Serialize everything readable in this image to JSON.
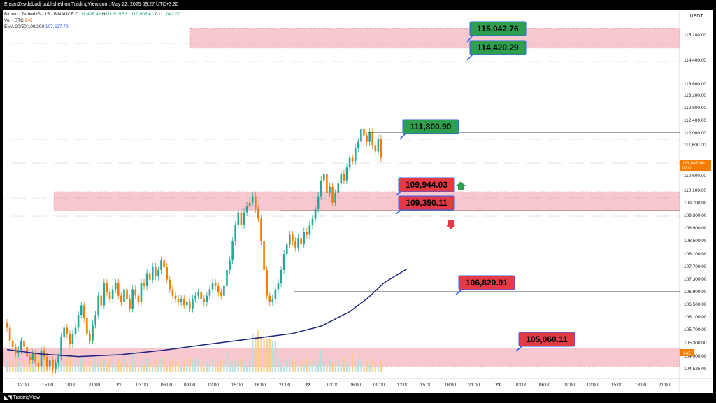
{
  "header": {
    "published": "EhsanZeydabadi published on TradingView.com, May 22, 2025 09:27 UTC+3:30"
  },
  "legend": {
    "symbol": "Bitcoin / TetherUS · 15 · BINANCE",
    "o_label": "O",
    "o": "111,426.48",
    "h_label": "H",
    "h": "111,519.53",
    "l_label": "L",
    "l": "110,903.41",
    "c_label": "C",
    "c": "111,042.00",
    "vol_label": "Vol · BTC",
    "vol": "945",
    "ema_label": "EMA 20/50/100/200",
    "ema": "107,527.79"
  },
  "footer": {
    "brand": "TradingView"
  },
  "chart_data": {
    "type": "candlestick",
    "currency": "USDT",
    "y_ticks": [
      "115,200.00",
      "114,400.00",
      "113,600.00",
      "113,200.00",
      "112,800.00",
      "112,400.00",
      "112,000.00",
      "111,600.00",
      "110,600.00",
      "110,100.00",
      "109,700.00",
      "109,300.00",
      "108,900.00",
      "108,500.00",
      "108,100.00",
      "107,700.00",
      "107,300.00",
      "106,900.00",
      "106,500.00",
      "106,100.00",
      "105,700.00",
      "105,300.00",
      "104,900.00",
      "104,525.00"
    ],
    "x_ticks": [
      "12:00",
      "15:00",
      "18:00",
      "21:00",
      "21",
      "03:00",
      "06:00",
      "09:00",
      "12:00",
      "15:00",
      "18:00",
      "21:00",
      "22",
      "03:00",
      "06:00",
      "09:00",
      "12:00",
      "15:00",
      "18:00",
      "21:00",
      "23",
      "03:00",
      "06:00",
      "09:00",
      "12:00",
      "15:00",
      "18:00",
      "21:00"
    ],
    "current_price": "111,042.00",
    "countdown": "02:01",
    "volume_badge": "945",
    "ylim": [
      104400,
      115400
    ],
    "close_series": [
      105700,
      105300,
      105100,
      104900,
      105000,
      105300,
      105100,
      104800,
      104700,
      104900,
      104600,
      104500,
      105000,
      104800,
      104500,
      104700,
      104400,
      104600,
      104800,
      105400,
      105700,
      105500,
      105200,
      105500,
      105700,
      106100,
      106400,
      106000,
      105500,
      105300,
      105800,
      106100,
      106700,
      106400,
      107100,
      106800,
      106600,
      106900,
      107100,
      106700,
      106500,
      106900,
      106600,
      106300,
      106900,
      106700,
      106500,
      107100,
      107000,
      107400,
      107200,
      107600,
      107300,
      107500,
      107800,
      107600,
      107200,
      106900,
      106700,
      106600,
      106500,
      106600,
      106400,
      106500,
      106300,
      106600,
      106700,
      106800,
      106600,
      106500,
      106700,
      106900,
      107100,
      107000,
      106800,
      106700,
      107000,
      107500,
      107800,
      108400,
      108900,
      109300,
      108900,
      109300,
      109500,
      109600,
      109800,
      109400,
      109100,
      108400,
      107500,
      106700,
      106500,
      106600,
      106900,
      107100,
      107500,
      108000,
      108300,
      108600,
      108400,
      108200,
      108500,
      108300,
      108700,
      108600,
      108900,
      109100,
      109400,
      109800,
      110300,
      110500,
      109900,
      110100,
      109600,
      109900,
      110200,
      110500,
      110300,
      110700,
      111000,
      110900,
      111300,
      111500,
      111900,
      111700,
      111500,
      111800,
      111400,
      111200,
      111600,
      111000
    ],
    "ema200": [
      {
        "x": 0,
        "y": 105020
      },
      {
        "x": 12,
        "y": 104880
      },
      {
        "x": 25,
        "y": 104800
      },
      {
        "x": 40,
        "y": 104860
      },
      {
        "x": 55,
        "y": 105000
      },
      {
        "x": 70,
        "y": 105180
      },
      {
        "x": 85,
        "y": 105350
      },
      {
        "x": 100,
        "y": 105520
      },
      {
        "x": 110,
        "y": 105750
      },
      {
        "x": 120,
        "y": 106200
      },
      {
        "x": 126,
        "y": 106600
      },
      {
        "x": 132,
        "y": 107100
      },
      {
        "x": 140,
        "y": 107530
      }
    ],
    "zones": [
      {
        "from": 114420.29,
        "to": 115042.76,
        "label_top": "115,042.76",
        "label_bottom": "114,420.29"
      },
      {
        "from": 109350.11,
        "to": 109944.03,
        "label_top": "109,944.03",
        "label_bottom": "109,350.11"
      },
      {
        "from": 104500,
        "to": 105060.11,
        "label_top": "105,060.11"
      }
    ],
    "levels": [
      {
        "value": 111800.9,
        "label": "111,800.90",
        "color": "#2e9e4f"
      },
      {
        "value": 109350.11,
        "label": "109,350.11",
        "color": "#e63946"
      },
      {
        "value": 106820.91,
        "label": "106,820.91",
        "color": "#e63946"
      }
    ],
    "callouts": [
      {
        "label": "115,042.76",
        "color": "#2e9e4f"
      },
      {
        "label": "114,420.29",
        "color": "#2e9e4f"
      },
      {
        "label": "111,800.90",
        "color": "#2e9e4f"
      },
      {
        "label": "109,944.03",
        "color": "#e63946"
      },
      {
        "label": "109,350.11",
        "color": "#e63946"
      },
      {
        "label": "106,820.91",
        "color": "#e63946"
      },
      {
        "label": "105,060.11",
        "color": "#e63946"
      }
    ],
    "colors": {
      "up": "#26a69a",
      "down": "#f57c00",
      "ema": "#1a237e",
      "zone": "#f7c8cf",
      "zone_border": "#e57373",
      "current": "#f57c00"
    }
  }
}
